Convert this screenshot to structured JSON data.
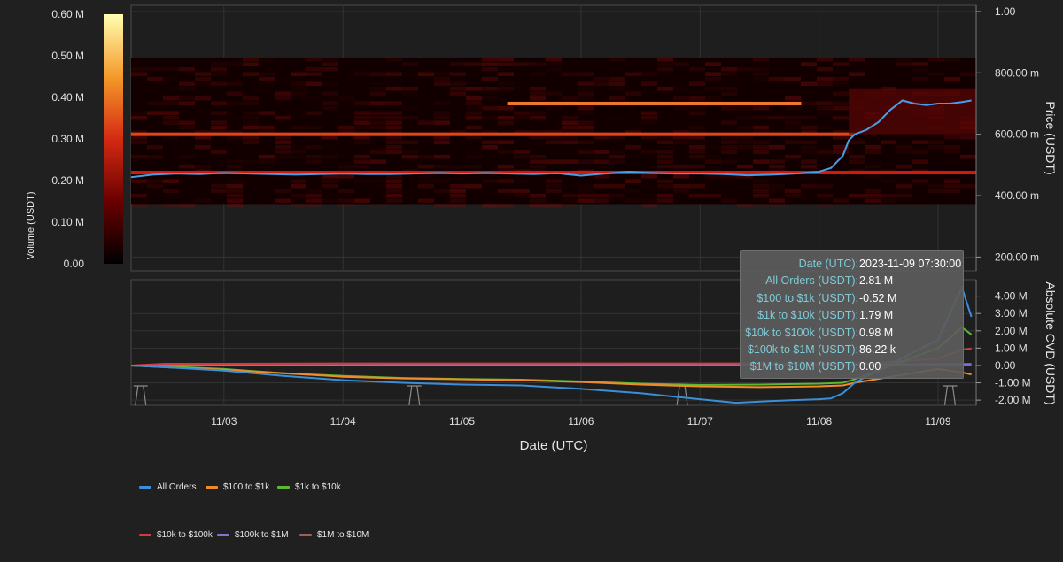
{
  "chart_data": {
    "type": "heatmap",
    "colorbar": {
      "title": "Volume (USDT)",
      "ticks": [
        "0.60 M",
        "0.50 M",
        "0.40 M",
        "0.30 M",
        "0.20 M",
        "0.10 M",
        "0.00"
      ],
      "range": [
        0,
        0.6
      ]
    },
    "price_panel": {
      "ylabel": "Price (USDT)",
      "yticks": [
        {
          "value": 1.0,
          "label": "1.00"
        },
        {
          "value": 0.8,
          "label": "800.00 m"
        },
        {
          "value": 0.6,
          "label": "600.00 m"
        },
        {
          "value": 0.4,
          "label": "400.00 m"
        },
        {
          "value": 0.2,
          "label": "200.00 m"
        }
      ],
      "ylim": [
        0.155,
        1.02
      ],
      "heatmap_price_range": [
        0.37,
        0.85
      ],
      "price_series": {
        "x": [
          2.22,
          2.4,
          2.6,
          2.8,
          3.0,
          3.2,
          3.4,
          3.6,
          3.8,
          4.0,
          4.2,
          4.4,
          4.6,
          4.8,
          5.0,
          5.2,
          5.4,
          5.6,
          5.8,
          6.0,
          6.2,
          6.4,
          6.6,
          6.8,
          7.0,
          7.2,
          7.4,
          7.6,
          7.8,
          8.0,
          8.1,
          8.2,
          8.25,
          8.3,
          8.4,
          8.5,
          8.6,
          8.7,
          8.8,
          8.9,
          9.0,
          9.1,
          9.2,
          9.28
        ],
        "y": [
          0.46,
          0.468,
          0.472,
          0.47,
          0.474,
          0.472,
          0.47,
          0.468,
          0.47,
          0.472,
          0.47,
          0.47,
          0.472,
          0.474,
          0.472,
          0.474,
          0.472,
          0.47,
          0.473,
          0.465,
          0.472,
          0.478,
          0.474,
          0.472,
          0.472,
          0.47,
          0.466,
          0.468,
          0.472,
          0.478,
          0.49,
          0.53,
          0.58,
          0.6,
          0.615,
          0.64,
          0.68,
          0.71,
          0.7,
          0.695,
          0.7,
          0.7,
          0.705,
          0.71
        ]
      },
      "volume_bands": [
        {
          "price": 0.475,
          "volume": 0.2
        },
        {
          "price": 0.6,
          "volume": 0.35
        },
        {
          "price": 0.7,
          "volume": 0.42
        }
      ]
    },
    "cvd_panel": {
      "ylabel": "Absolute CVD (USDT)",
      "yticks": [
        {
          "value": 4,
          "label": "4.00 M"
        },
        {
          "value": 3,
          "label": "3.00 M"
        },
        {
          "value": 2,
          "label": "2.00 M"
        },
        {
          "value": 1,
          "label": "1.00 M"
        },
        {
          "value": 0,
          "label": "0.00"
        },
        {
          "value": -1,
          "label": "-1.00 M"
        },
        {
          "value": -2,
          "label": "-2.00 M"
        }
      ],
      "ylim": [
        -2.3,
        4.95
      ],
      "series": [
        {
          "name": "All Orders",
          "color": "#3b8ed8",
          "x": [
            2.22,
            2.5,
            3.0,
            3.5,
            4.0,
            4.5,
            5.0,
            5.5,
            6.0,
            6.5,
            7.0,
            7.3,
            7.6,
            8.0,
            8.1,
            8.2,
            8.3,
            9.0,
            9.2,
            9.28
          ],
          "y": [
            0,
            -0.1,
            -0.3,
            -0.6,
            -0.85,
            -1.0,
            -1.1,
            -1.15,
            -1.35,
            -1.6,
            -1.95,
            -2.15,
            -2.05,
            -1.95,
            -1.9,
            -1.6,
            -1.0,
            1.5,
            4.5,
            2.81
          ]
        },
        {
          "name": "$100 to $1k",
          "color": "#f08a2a",
          "x": [
            2.22,
            2.5,
            3.0,
            3.5,
            4.0,
            4.5,
            5.0,
            5.5,
            6.0,
            6.5,
            7.0,
            7.5,
            8.0,
            8.2,
            8.3,
            9.0,
            9.2,
            9.28
          ],
          "y": [
            0,
            -0.1,
            -0.25,
            -0.45,
            -0.65,
            -0.75,
            -0.8,
            -0.85,
            -0.95,
            -1.1,
            -1.2,
            -1.25,
            -1.2,
            -1.15,
            -1.0,
            -0.2,
            -0.4,
            -0.52
          ]
        },
        {
          "name": "$1k to $10k",
          "color": "#5cb82e",
          "x": [
            2.22,
            2.5,
            3.0,
            3.5,
            4.0,
            4.5,
            5.0,
            5.5,
            6.0,
            6.5,
            7.0,
            7.5,
            8.0,
            8.2,
            8.3,
            9.0,
            9.2,
            9.28
          ],
          "y": [
            0,
            -0.05,
            -0.2,
            -0.45,
            -0.6,
            -0.72,
            -0.78,
            -0.82,
            -0.92,
            -1.05,
            -1.12,
            -1.1,
            -1.05,
            -1.0,
            -0.8,
            1.0,
            2.2,
            1.79
          ]
        },
        {
          "name": "$10k to $100k",
          "color": "#d63b3b",
          "x": [
            2.22,
            2.5,
            3.0,
            4.0,
            5.0,
            6.0,
            7.0,
            8.0,
            8.5,
            9.0,
            9.2,
            9.28
          ],
          "y": [
            0,
            0.1,
            0.1,
            0.12,
            0.12,
            0.12,
            0.12,
            0.12,
            0.15,
            0.4,
            0.9,
            0.98
          ]
        },
        {
          "name": "$100k to $1M",
          "color": "#8a6fd6",
          "x": [
            2.22,
            9.28
          ],
          "y": [
            0,
            0.08622
          ]
        },
        {
          "name": "$1M to $10M",
          "color": "#a06060",
          "x": [
            2.22,
            9.28
          ],
          "y": [
            0,
            0
          ]
        }
      ]
    },
    "x_axis": {
      "title": "Date (UTC)",
      "xlim": [
        2.22,
        9.32
      ],
      "ticks": [
        {
          "value": 3,
          "label": "11/03"
        },
        {
          "value": 4,
          "label": "11/04"
        },
        {
          "value": 5,
          "label": "11/05"
        },
        {
          "value": 6,
          "label": "11/06"
        },
        {
          "value": 7,
          "label": "11/07"
        },
        {
          "value": 8,
          "label": "11/08"
        },
        {
          "value": 9,
          "label": "11/09"
        }
      ]
    },
    "tooltip": {
      "rows": [
        {
          "label": "Date (UTC):",
          "value": "2023-11-09 07:30:00"
        },
        {
          "label": "All Orders (USDT):",
          "value": "2.81 M"
        },
        {
          "label": "$100 to $1k (USDT):",
          "value": "-0.52 M"
        },
        {
          "label": "$1k to $10k (USDT):",
          "value": "1.79 M"
        },
        {
          "label": "$10k to $100k (USDT):",
          "value": "0.98 M"
        },
        {
          "label": "$100k to $1M (USDT):",
          "value": "86.22 k"
        },
        {
          "label": "$1M to $10M (USDT):",
          "value": "0.00"
        }
      ]
    },
    "legend": [
      {
        "label": "All Orders",
        "color": "#3b8ed8"
      },
      {
        "label": "$100 to $1k",
        "color": "#f08a2a"
      },
      {
        "label": "$1k to $10k",
        "color": "#5cb82e"
      },
      {
        "label": "$10k to $100k",
        "color": "#d63b3b"
      },
      {
        "label": "$100k to $1M",
        "color": "#8a6fd6"
      },
      {
        "label": "$1M to $10M",
        "color": "#a06060"
      }
    ]
  }
}
